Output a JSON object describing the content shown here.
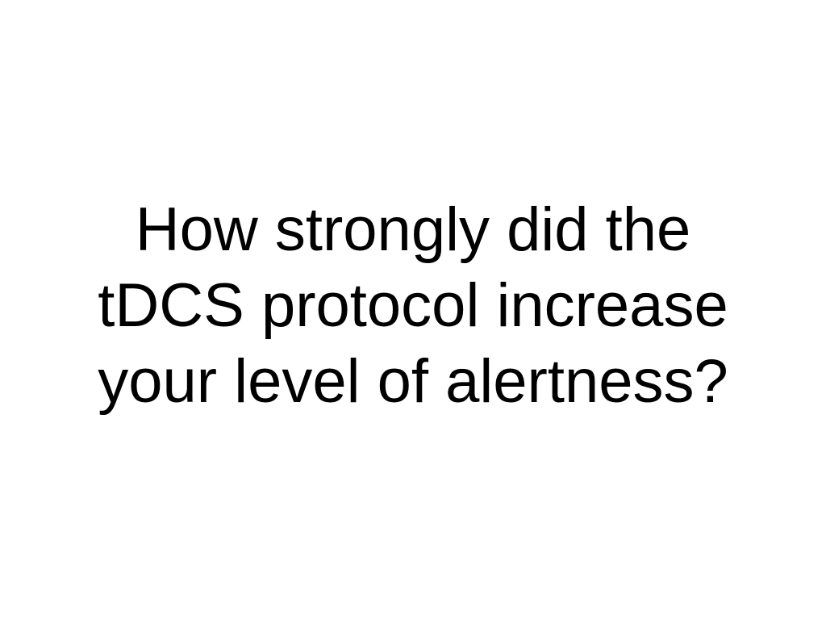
{
  "question": {
    "lines": [
      "How strongly did the",
      "tDCS protocol increase",
      "your level of alertness?"
    ]
  },
  "colors": {
    "background": "#ffffff",
    "text": "#000000"
  }
}
